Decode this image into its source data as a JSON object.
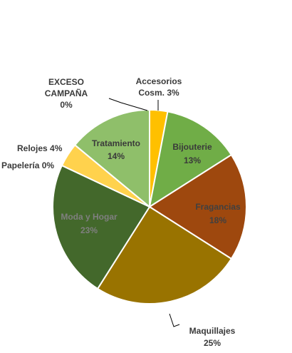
{
  "chart_data": {
    "type": "pie",
    "start_angle_deg": 0,
    "direction": "clockwise",
    "slices": [
      {
        "label": "Accesorios Cosm.",
        "label_lines": [
          "Accesorios",
          "Cosm. 3%"
        ],
        "value": 3,
        "color": "#ffc000",
        "label_color": "#3a3a3a"
      },
      {
        "label": "Bijouterie",
        "label_lines": [
          "Bijouterie",
          "13%"
        ],
        "value": 13,
        "color": "#70ad47",
        "label_color": "#3a3a3a"
      },
      {
        "label": "Fragancias",
        "label_lines": [
          "Fragancias",
          "18%"
        ],
        "value": 18,
        "color": "#9e480e",
        "label_color": "#404040"
      },
      {
        "label": "Maquillajes",
        "label_lines": [
          "Maquillajes",
          "25%"
        ],
        "value": 25,
        "color": "#997300",
        "label_color": "#3a3a3a"
      },
      {
        "label": "Moda y Hogar",
        "label_lines": [
          "Moda y Hogar",
          "23%"
        ],
        "value": 23,
        "color": "#43682b",
        "label_color": "#7f7f7f"
      },
      {
        "label": "Papelería",
        "label_lines": [
          "Papelería 0%"
        ],
        "value": 0,
        "color": "#a9d18e",
        "label_color": "#3a3a3a"
      },
      {
        "label": "Relojes",
        "label_lines": [
          "Relojes 4%"
        ],
        "value": 4,
        "color": "#ffd24d",
        "label_color": "#3a3a3a"
      },
      {
        "label": "Tratamiento",
        "label_lines": [
          "Tratamiento",
          "14%"
        ],
        "value": 14,
        "color": "#8fbf6a",
        "label_color": "#3a3a3a"
      },
      {
        "label": "EXCESO CAMPAÑA",
        "label_lines": [
          "EXCESO",
          "CAMPAÑA",
          "0%"
        ],
        "value": 0,
        "color": "#ffe699",
        "label_color": "#3a3a3a"
      }
    ]
  }
}
